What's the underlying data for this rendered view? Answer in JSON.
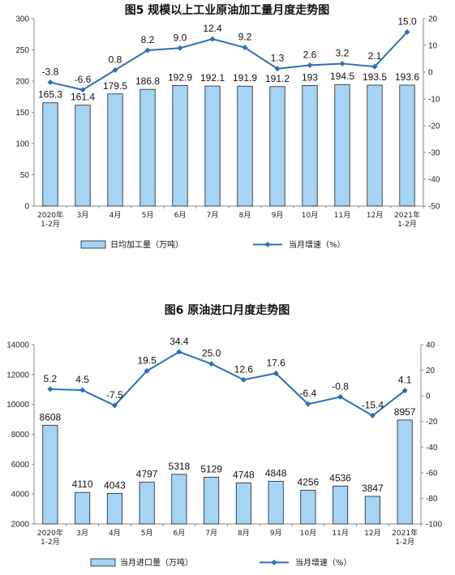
{
  "chart_data": [
    {
      "type": "bar",
      "title": "图5  规模以上工业原油加工量月度走势图",
      "categories": [
        "2020年\n1-2月",
        "3月",
        "4月",
        "5月",
        "6月",
        "7月",
        "8月",
        "9月",
        "10月",
        "11月",
        "12月",
        "2021年\n1-2月"
      ],
      "series": [
        {
          "name": "日均加工量（万吨）",
          "type": "bar",
          "axis": "left",
          "values": [
            165.3,
            161.4,
            179.5,
            186.8,
            192.9,
            192.1,
            191.9,
            191.2,
            193.0,
            194.5,
            193.5,
            193.6
          ]
        },
        {
          "name": "当月增速（%）",
          "type": "line",
          "axis": "right",
          "values": [
            -3.8,
            -6.6,
            0.8,
            8.2,
            9.0,
            12.4,
            9.2,
            1.3,
            2.6,
            3.2,
            2.1,
            15.0
          ]
        }
      ],
      "ylim_left": [
        0,
        300
      ],
      "yticks_left": [
        "0",
        "50",
        "100",
        "150",
        "200",
        "250",
        "300"
      ],
      "ylim_right": [
        -50,
        20
      ],
      "yticks_right": [
        "-50",
        "-40",
        "-30",
        "-20",
        "-10",
        "0",
        "10",
        "20"
      ],
      "legend_position": "bottom",
      "colors": {
        "bar_fill": "#a6d4f5",
        "bar_stroke": "#1f1f1f",
        "line": "#2e6fb5"
      }
    },
    {
      "type": "bar",
      "title": "图6  原油进口月度走势图",
      "categories": [
        "2020年\n1-2月",
        "3月",
        "4月",
        "5月",
        "6月",
        "7月",
        "8月",
        "9月",
        "10月",
        "11月",
        "12月",
        "2021年\n1-2月"
      ],
      "series": [
        {
          "name": "当月进口量（万吨）",
          "type": "bar",
          "axis": "left",
          "values": [
            8608,
            4110,
            4043,
            4797,
            5318,
            5129,
            4748,
            4848,
            4256,
            4536,
            3847,
            8957
          ]
        },
        {
          "name": "当月增速（%）",
          "type": "line",
          "axis": "right",
          "values": [
            5.2,
            4.5,
            -7.5,
            19.5,
            34.4,
            25.0,
            12.6,
            17.6,
            -6.4,
            -0.8,
            -15.4,
            4.1
          ]
        }
      ],
      "ylim_left": [
        2000,
        14000
      ],
      "yticks_left": [
        "2000",
        "4000",
        "6000",
        "8000",
        "10000",
        "12000",
        "14000"
      ],
      "ylim_right": [
        -100,
        40
      ],
      "yticks_right": [
        "-100",
        "-80",
        "-60",
        "-40",
        "-20",
        "0",
        "20",
        "40"
      ],
      "legend_position": "bottom",
      "colors": {
        "bar_fill": "#a6d4f5",
        "bar_stroke": "#1f1f1f",
        "line": "#2e6fb5"
      }
    }
  ]
}
